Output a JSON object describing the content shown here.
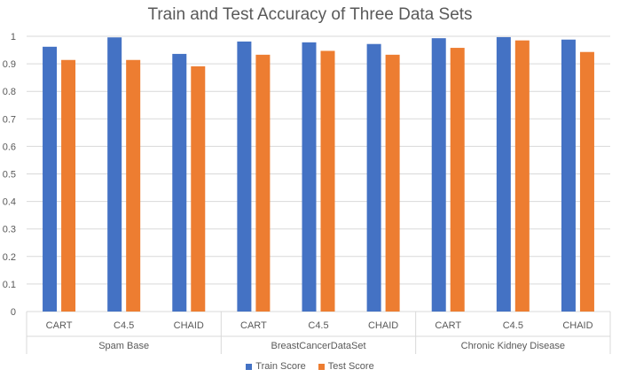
{
  "chart_data": {
    "type": "bar",
    "title": "Train and Test Accuracy of Three Data Sets",
    "groups": [
      {
        "name": "Spam Base",
        "categories": [
          "CART",
          "C4.5",
          "CHAID"
        ]
      },
      {
        "name": "BreastCancerDataSet",
        "categories": [
          "CART",
          "C4.5",
          "CHAID"
        ]
      },
      {
        "name": "Chronic Kidney Disease",
        "categories": [
          "CART",
          "C4.5",
          "CHAID"
        ]
      }
    ],
    "categories": [
      "CART",
      "C4.5",
      "CHAID",
      "CART",
      "C4.5",
      "CHAID",
      "CART",
      "C4.5",
      "CHAID"
    ],
    "series": [
      {
        "name": "Train Score",
        "color": "#4472C4",
        "values": [
          0.962,
          0.996,
          0.936,
          0.981,
          0.978,
          0.972,
          0.993,
          0.997,
          0.988
        ]
      },
      {
        "name": "Test Score",
        "color": "#ED7D31",
        "values": [
          0.914,
          0.914,
          0.891,
          0.933,
          0.947,
          0.933,
          0.958,
          0.985,
          0.943
        ]
      }
    ],
    "ylim": [
      0,
      1
    ],
    "yticks": [
      "0",
      "0.1",
      "0.2",
      "0.3",
      "0.4",
      "0.5",
      "0.6",
      "0.7",
      "0.8",
      "0.9",
      "1"
    ],
    "grid": true,
    "legend_position": "bottom"
  }
}
